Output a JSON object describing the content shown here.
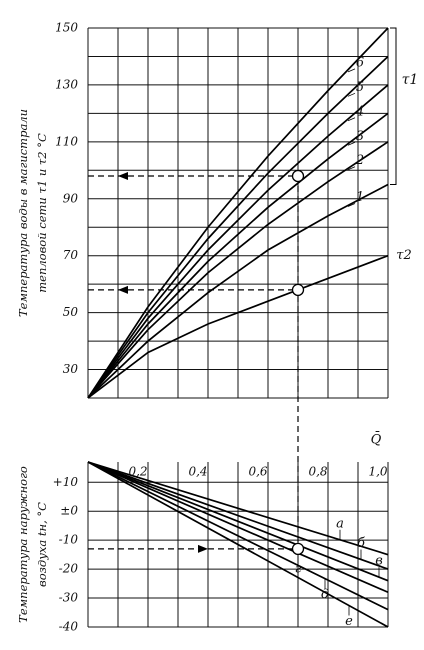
{
  "chart_data": [
    {
      "type": "line",
      "ylabel": [
        "Температура воды в магистрали",
        "тепловой сети τ1 и τ2 °С"
      ],
      "xlabel": "Q̄",
      "group_label": "τ1",
      "xlim": [
        0,
        1.0
      ],
      "ylim": [
        20,
        150
      ],
      "yticks": [
        30,
        50,
        70,
        90,
        110,
        130,
        150
      ],
      "yminor": [
        20,
        30,
        40,
        50,
        60,
        70,
        80,
        90,
        100,
        110,
        120,
        130,
        140,
        150
      ],
      "xminor": [
        0,
        0.1,
        0.2,
        0.3,
        0.4,
        0.5,
        0.6,
        0.7,
        0.8,
        0.9,
        1.0
      ],
      "x": [
        0,
        0.2,
        0.4,
        0.6,
        0.8,
        1.0
      ],
      "series": [
        {
          "name": "1",
          "color": "#000000",
          "values": [
            20,
            40,
            57,
            72,
            84,
            95
          ]
        },
        {
          "name": "2",
          "color": "#000000",
          "values": [
            20,
            44,
            64,
            81,
            96,
            110
          ]
        },
        {
          "name": "3",
          "color": "#000000",
          "values": [
            20,
            46,
            68,
            87,
            104,
            120
          ]
        },
        {
          "name": "4",
          "color": "#000000",
          "values": [
            20,
            48,
            72,
            93,
            112,
            130
          ]
        },
        {
          "name": "5",
          "color": "#000000",
          "values": [
            20,
            50,
            76,
            99,
            120,
            140
          ]
        },
        {
          "name": "6",
          "color": "#000000",
          "values": [
            20,
            52,
            80,
            105,
            128,
            150
          ]
        },
        {
          "name": "τ2",
          "color": "#000000",
          "values": [
            20,
            36,
            46,
            54,
            62,
            70
          ]
        }
      ],
      "points": {
        "x": [
          0.7,
          0.7
        ],
        "y": [
          98,
          58
        ]
      }
    },
    {
      "type": "line",
      "ylabel": [
        "Температура наружного",
        "воздуха tн, °С"
      ],
      "xlim": [
        0,
        1.0
      ],
      "ylim": [
        -40,
        17
      ],
      "yticks": [
        {
          "value": 10,
          "label": "+10"
        },
        {
          "value": 0,
          "label": "±0"
        },
        -10,
        -20,
        -30,
        -40
      ],
      "yminor": [
        10,
        0,
        -10,
        -20,
        -30,
        -40
      ],
      "xticks": [
        {
          "value": 0.2,
          "label": "0,2"
        },
        {
          "value": 0.4,
          "label": "0,4"
        },
        {
          "value": 0.6,
          "label": "0,6"
        },
        {
          "value": 0.8,
          "label": "0,8"
        },
        {
          "value": 1.0,
          "label": "1,0"
        }
      ],
      "xminor": [
        0,
        0.1,
        0.2,
        0.3,
        0.4,
        0.5,
        0.6,
        0.7,
        0.8,
        0.9,
        1.0
      ],
      "x": [
        0,
        1.0
      ],
      "series": [
        {
          "name": "а",
          "color": "#000000",
          "values": [
            17,
            -15
          ]
        },
        {
          "name": "б",
          "color": "#000000",
          "values": [
            17,
            -20
          ]
        },
        {
          "name": "в",
          "color": "#000000",
          "values": [
            17,
            -24
          ]
        },
        {
          "name": "г",
          "color": "#000000",
          "values": [
            17,
            -28
          ]
        },
        {
          "name": "д",
          "color": "#000000",
          "values": [
            17,
            -34
          ]
        },
        {
          "name": "е",
          "color": "#000000",
          "values": [
            17,
            -40
          ]
        }
      ],
      "points": {
        "x": [
          0.7
        ],
        "y": [
          -13
        ]
      }
    }
  ]
}
